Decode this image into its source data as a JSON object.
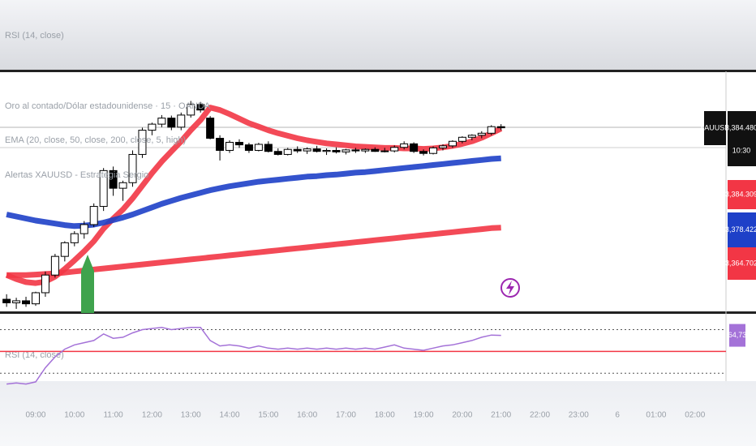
{
  "top_pane_label": "RSI (14, close)",
  "chart_data": [
    {
      "type": "candlestick",
      "title": "Oro al contado/Dólar estadounidense · 15 · OANDA",
      "indicators": [
        "EMA (20, close, 50, close, 200, close, 5, high)",
        "Alertas XAUUSD - Estrategia Sergio"
      ],
      "symbol": "XAUUSD",
      "last_price": {
        "value": 3384.48,
        "label": "3,384.480"
      },
      "countdown": "10:30",
      "xlim": [
        8.08,
        26.8
      ],
      "ylim": [
        3348.1,
        3395.5
      ],
      "up_color": "#ffffff",
      "down_color": "#000000",
      "x": [
        8.25,
        8.5,
        8.75,
        9,
        9.25,
        9.5,
        9.75,
        10,
        10.25,
        10.5,
        10.75,
        11,
        11.25,
        11.5,
        11.75,
        12,
        12.25,
        12.5,
        12.75,
        13,
        13.25,
        13.5,
        13.75,
        14,
        14.25,
        14.5,
        14.75,
        15,
        15.25,
        15.5,
        15.75,
        16,
        16.25,
        16.5,
        16.75,
        17,
        17.25,
        17.5,
        17.75,
        18,
        18.25,
        18.5,
        18.75,
        19,
        19.25,
        19.5,
        19.75,
        20,
        20.25,
        20.5,
        20.75,
        21
      ],
      "open": [
        3350.5,
        3349.8,
        3350.2,
        3349.6,
        3351.8,
        3355.3,
        3359.0,
        3361.7,
        3363.5,
        3365.3,
        3368.9,
        3376.0,
        3372.5,
        3373.6,
        3379.2,
        3384.0,
        3385.2,
        3386.4,
        3384.6,
        3387.0,
        3389.1,
        3386.4,
        3382.4,
        3380.0,
        3381.6,
        3381.1,
        3380.0,
        3381.2,
        3379.8,
        3379.2,
        3380.2,
        3379.9,
        3380.3,
        3379.8,
        3380.0,
        3379.7,
        3380.1,
        3379.9,
        3380.2,
        3379.8,
        3379.9,
        3380.6,
        3381.3,
        3379.8,
        3379.4,
        3380.5,
        3380.9,
        3381.8,
        3382.6,
        3383.0,
        3383.4,
        3384.7
      ],
      "high": [
        3351.5,
        3350.8,
        3351.0,
        3352.0,
        3356.0,
        3359.5,
        3362.0,
        3364.0,
        3366.0,
        3369.5,
        3376.5,
        3376.8,
        3374.0,
        3380.0,
        3384.5,
        3385.5,
        3387.0,
        3386.9,
        3387.5,
        3389.8,
        3389.6,
        3386.8,
        3383.0,
        3382.0,
        3382.2,
        3381.5,
        3381.5,
        3381.8,
        3380.4,
        3380.5,
        3380.8,
        3380.6,
        3380.9,
        3380.4,
        3380.6,
        3380.3,
        3380.5,
        3380.4,
        3380.6,
        3380.5,
        3381.0,
        3381.8,
        3381.6,
        3380.2,
        3380.8,
        3381.2,
        3382.0,
        3382.8,
        3383.2,
        3383.8,
        3385.0,
        3385.2
      ],
      "low": [
        3349.0,
        3348.6,
        3349.0,
        3349.2,
        3351.0,
        3354.8,
        3358.0,
        3361.0,
        3362.5,
        3364.8,
        3368.0,
        3371.0,
        3370.0,
        3372.8,
        3378.5,
        3383.0,
        3384.6,
        3384.0,
        3384.0,
        3386.5,
        3387.5,
        3382.2,
        3378.0,
        3379.5,
        3380.5,
        3379.5,
        3379.8,
        3379.6,
        3379.0,
        3379.0,
        3379.5,
        3379.3,
        3379.6,
        3379.1,
        3379.4,
        3379.2,
        3379.5,
        3379.5,
        3379.7,
        3379.6,
        3379.6,
        3380.2,
        3379.5,
        3379.0,
        3379.2,
        3380.0,
        3380.5,
        3381.4,
        3382.0,
        3382.4,
        3383.0,
        3384.0
      ],
      "close": [
        3349.8,
        3350.2,
        3349.6,
        3351.8,
        3355.3,
        3359.0,
        3361.7,
        3363.5,
        3365.3,
        3368.9,
        3376.0,
        3372.5,
        3373.6,
        3379.2,
        3384.0,
        3385.2,
        3386.4,
        3384.6,
        3387.0,
        3389.1,
        3388.0,
        3382.4,
        3380.0,
        3381.6,
        3381.1,
        3380.0,
        3381.2,
        3379.8,
        3379.2,
        3380.2,
        3379.9,
        3380.3,
        3379.8,
        3380.0,
        3379.7,
        3380.1,
        3379.9,
        3380.2,
        3379.8,
        3379.9,
        3380.6,
        3381.3,
        3379.8,
        3379.4,
        3380.5,
        3380.9,
        3381.8,
        3382.6,
        3383.0,
        3383.4,
        3384.7,
        3384.48
      ],
      "series": [
        {
          "color": "#f23645",
          "end_label": "3,384.309",
          "values": [
            3355.3,
            3354.5,
            3353.9,
            3353.7,
            3354.0,
            3355.0,
            3356.5,
            3358.2,
            3360.0,
            3362.0,
            3364.5,
            3366.5,
            3368.3,
            3370.5,
            3373.0,
            3375.5,
            3377.8,
            3379.8,
            3381.8,
            3384.0,
            3386.0,
            3388.5,
            3388.0,
            3387.2,
            3386.3,
            3385.4,
            3384.7,
            3384.0,
            3383.4,
            3382.9,
            3382.4,
            3382.0,
            3381.7,
            3381.4,
            3381.2,
            3381.0,
            3380.8,
            3380.7,
            3380.6,
            3380.5,
            3380.5,
            3380.4,
            3380.4,
            3380.3,
            3380.4,
            3380.6,
            3380.9,
            3381.3,
            3381.8,
            3382.5,
            3383.4,
            3384.309
          ]
        },
        {
          "color": "#1e40c8",
          "end_label": "3,378.422",
          "values": [
            3367.3,
            3366.9,
            3366.5,
            3366.1,
            3365.8,
            3365.5,
            3365.2,
            3365.0,
            3365.1,
            3365.3,
            3365.7,
            3366.2,
            3366.7,
            3367.3,
            3368.0,
            3368.7,
            3369.4,
            3370.0,
            3370.6,
            3371.1,
            3371.6,
            3372.1,
            3372.5,
            3372.9,
            3373.2,
            3373.5,
            3373.8,
            3374.0,
            3374.2,
            3374.4,
            3374.6,
            3374.8,
            3374.9,
            3375.1,
            3375.2,
            3375.4,
            3375.6,
            3375.7,
            3375.9,
            3376.1,
            3376.3,
            3376.5,
            3376.7,
            3376.9,
            3377.1,
            3377.3,
            3377.5,
            3377.7,
            3377.9,
            3378.1,
            3378.3,
            3378.422
          ]
        },
        {
          "color": "#f23645",
          "end_label": "3,364.702",
          "values": [
            3355.3,
            3355.3,
            3355.3,
            3355.4,
            3355.5,
            3355.6,
            3355.8,
            3356.0,
            3356.2,
            3356.4,
            3356.6,
            3356.8,
            3357.0,
            3357.2,
            3357.4,
            3357.6,
            3357.8,
            3358.0,
            3358.2,
            3358.4,
            3358.6,
            3358.8,
            3359.0,
            3359.2,
            3359.4,
            3359.6,
            3359.8,
            3360.0,
            3360.2,
            3360.4,
            3360.6,
            3360.8,
            3361.0,
            3361.2,
            3361.4,
            3361.6,
            3361.8,
            3362.0,
            3362.2,
            3362.4,
            3362.6,
            3362.8,
            3363.0,
            3363.2,
            3363.4,
            3363.6,
            3363.8,
            3364.0,
            3364.2,
            3364.4,
            3364.6,
            3364.702
          ]
        }
      ]
    },
    {
      "type": "line",
      "title": "RSI (14, close)",
      "color": "#a472d8",
      "xlim": [
        8.08,
        26.8
      ],
      "ylim": [
        22.7,
        84.5
      ],
      "levels": [
        70,
        50,
        30
      ],
      "level_colors": [
        "#555555",
        "#f23645",
        "#555555"
      ],
      "values": [
        20,
        21,
        20,
        22,
        35,
        45,
        52,
        56,
        58,
        60,
        66,
        62,
        63,
        67,
        70,
        71,
        72,
        70,
        71,
        72,
        72,
        60,
        55,
        56,
        55,
        53,
        55,
        53,
        52,
        53,
        52,
        53,
        52,
        53,
        52,
        53,
        52,
        53,
        52,
        54,
        56,
        53,
        52,
        51,
        53,
        55,
        56,
        58,
        60,
        63,
        65,
        64.73
      ],
      "last_label": {
        "value": 64.73,
        "label": "64,73"
      },
      "xticks": [
        {
          "value": 9,
          "label": "09:00"
        },
        {
          "value": 10,
          "label": "10:00"
        },
        {
          "value": 11,
          "label": "11:00"
        },
        {
          "value": 12,
          "label": "12:00"
        },
        {
          "value": 13,
          "label": "13:00"
        },
        {
          "value": 14,
          "label": "14:00"
        },
        {
          "value": 15,
          "label": "15:00"
        },
        {
          "value": 16,
          "label": "16:00"
        },
        {
          "value": 17,
          "label": "17:00"
        },
        {
          "value": 18,
          "label": "18:00"
        },
        {
          "value": 19,
          "label": "19:00"
        },
        {
          "value": 20,
          "label": "20:00"
        },
        {
          "value": 21,
          "label": "21:00"
        },
        {
          "value": 22,
          "label": "22:00"
        },
        {
          "value": 23,
          "label": "23:00"
        },
        {
          "value": 24,
          "label": "6"
        },
        {
          "value": 25,
          "label": "01:00"
        },
        {
          "value": 26,
          "label": "02:00"
        }
      ]
    }
  ]
}
